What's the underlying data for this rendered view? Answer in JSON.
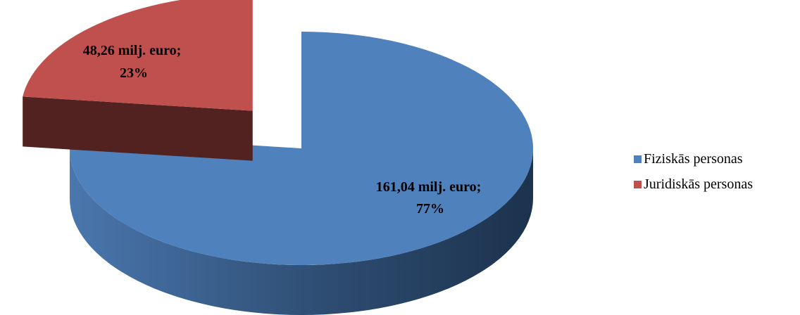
{
  "chart_data": {
    "type": "pie",
    "categories": [
      "Fiziskās personas",
      "Juridiskās personas"
    ],
    "values": [
      161.04,
      48.26
    ],
    "percentages": [
      77,
      23
    ],
    "data_labels": [
      {
        "line1": "161,04 milj. euro;",
        "line2": "77%"
      },
      {
        "line1": "48,26 milj. euro;",
        "line2": "23%"
      }
    ],
    "colors": [
      "#4F81BD",
      "#C0504D"
    ],
    "side_colors": [
      "#3A5F8C",
      "#512220"
    ],
    "exploded": [
      false,
      true
    ],
    "style": "3d",
    "legend": "right",
    "title": ""
  },
  "legend": {
    "items": [
      {
        "label": "Fiziskās personas",
        "color": "#4F81BD"
      },
      {
        "label": "Juridiskās personas",
        "color": "#C0504D"
      }
    ]
  }
}
